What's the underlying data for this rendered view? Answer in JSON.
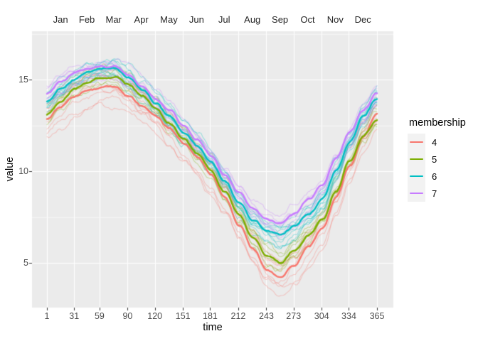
{
  "figure": {
    "background": "#FFFFFF",
    "panel_background": "#EBEBEB",
    "grid_color": "#FFFFFF",
    "tick_mark_color": "#333333",
    "tick_label_color": "#4D4D4D",
    "title_color": "#000000"
  },
  "top_axis": {
    "months": [
      "Jan",
      "Feb",
      "Mar",
      "Apr",
      "May",
      "Jun",
      "Jul",
      "Aug",
      "Sep",
      "Oct",
      "Nov",
      "Dec"
    ],
    "mid_days": [
      16,
      45,
      74.5,
      105,
      135.5,
      166,
      196.5,
      227.5,
      258,
      288.5,
      319,
      349.5
    ]
  },
  "x_axis": {
    "title": "time",
    "ticks": [
      1,
      31,
      59,
      90,
      120,
      151,
      181,
      212,
      243,
      273,
      304,
      334,
      365
    ]
  },
  "y_axis": {
    "title": "value",
    "ticks": [
      5,
      10,
      15
    ],
    "minor_ticks": [
      7.5,
      12.5,
      17.5
    ]
  },
  "legend": {
    "title": "membership",
    "key_fill": "#F2F2F2",
    "items": [
      {
        "label": "4",
        "color": "#F8766D"
      },
      {
        "label": "5",
        "color": "#7CAE00"
      },
      {
        "label": "6",
        "color": "#00BFC4"
      },
      {
        "label": "7",
        "color": "#C77CFF"
      }
    ]
  },
  "chart_data": {
    "type": "line",
    "title": "",
    "xlabel": "time",
    "ylabel": "value",
    "xlim": [
      1,
      365
    ],
    "ylim": [
      2.6,
      17.6
    ],
    "x_ticks": [
      1,
      31,
      59,
      90,
      120,
      151,
      181,
      212,
      243,
      273,
      304,
      334,
      365
    ],
    "y_ticks": [
      5,
      10,
      15
    ],
    "top_month_labels": [
      "Jan",
      "Feb",
      "Mar",
      "Apr",
      "May",
      "Jun",
      "Jul",
      "Aug",
      "Sep",
      "Oct",
      "Nov",
      "Dec"
    ],
    "grid": true,
    "legend_position": "right",
    "legend_title": "membership",
    "anchor_days": [
      1,
      16,
      32,
      46,
      60,
      75,
      91,
      106,
      121,
      136,
      152,
      167,
      182,
      197,
      213,
      228,
      244,
      258,
      274,
      290,
      305,
      320,
      335,
      350,
      365
    ],
    "series": [
      {
        "name": "membership 4 mean",
        "membership": "4",
        "color": "#F8766D",
        "role": "cluster-mean",
        "values": [
          12.85,
          13.55,
          14.1,
          14.4,
          14.55,
          14.6,
          14.1,
          13.55,
          13.0,
          12.3,
          11.5,
          10.7,
          9.85,
          8.6,
          7.1,
          5.8,
          4.65,
          4.25,
          4.85,
          5.9,
          6.9,
          8.6,
          10.3,
          11.9,
          13.1
        ]
      },
      {
        "name": "membership 5 mean",
        "membership": "5",
        "color": "#7CAE00",
        "role": "cluster-mean",
        "values": [
          13.05,
          13.8,
          14.5,
          14.9,
          15.1,
          15.15,
          14.7,
          14.1,
          13.45,
          12.65,
          11.8,
          10.95,
          10.05,
          8.9,
          7.6,
          6.35,
          5.4,
          5.0,
          5.7,
          6.55,
          7.4,
          8.95,
          10.55,
          11.9,
          12.85
        ]
      },
      {
        "name": "membership 6 mean",
        "membership": "6",
        "color": "#00BFC4",
        "role": "cluster-mean",
        "values": [
          13.85,
          14.5,
          15.0,
          15.35,
          15.55,
          15.6,
          15.1,
          14.4,
          13.7,
          12.95,
          12.15,
          11.35,
          10.55,
          9.5,
          8.3,
          7.35,
          6.8,
          6.6,
          7.0,
          7.75,
          8.5,
          10.0,
          11.65,
          13.0,
          14.0
        ]
      },
      {
        "name": "membership 7 mean",
        "membership": "7",
        "color": "#C77CFF",
        "role": "cluster-mean",
        "values": [
          14.2,
          14.85,
          15.35,
          15.6,
          15.7,
          15.75,
          15.3,
          14.7,
          14.0,
          13.3,
          12.5,
          11.75,
          10.9,
          9.9,
          8.8,
          7.95,
          7.35,
          7.1,
          7.7,
          8.5,
          9.3,
          10.7,
          12.1,
          13.3,
          14.25
        ]
      }
    ],
    "member_lines": [
      {
        "membership": "4",
        "color": "#F8766D",
        "count": 8,
        "spread": 0.78,
        "alpha": 0.35,
        "outlier_offset": -1.0
      },
      {
        "membership": "5",
        "color": "#7CAE00",
        "count": 6,
        "spread": 0.5,
        "alpha": 0.35
      },
      {
        "membership": "6",
        "color": "#00BFC4",
        "count": 10,
        "spread": 0.55,
        "alpha": 0.35
      },
      {
        "membership": "7",
        "color": "#C77CFF",
        "count": 7,
        "spread": 0.6,
        "alpha": 0.35
      }
    ]
  }
}
